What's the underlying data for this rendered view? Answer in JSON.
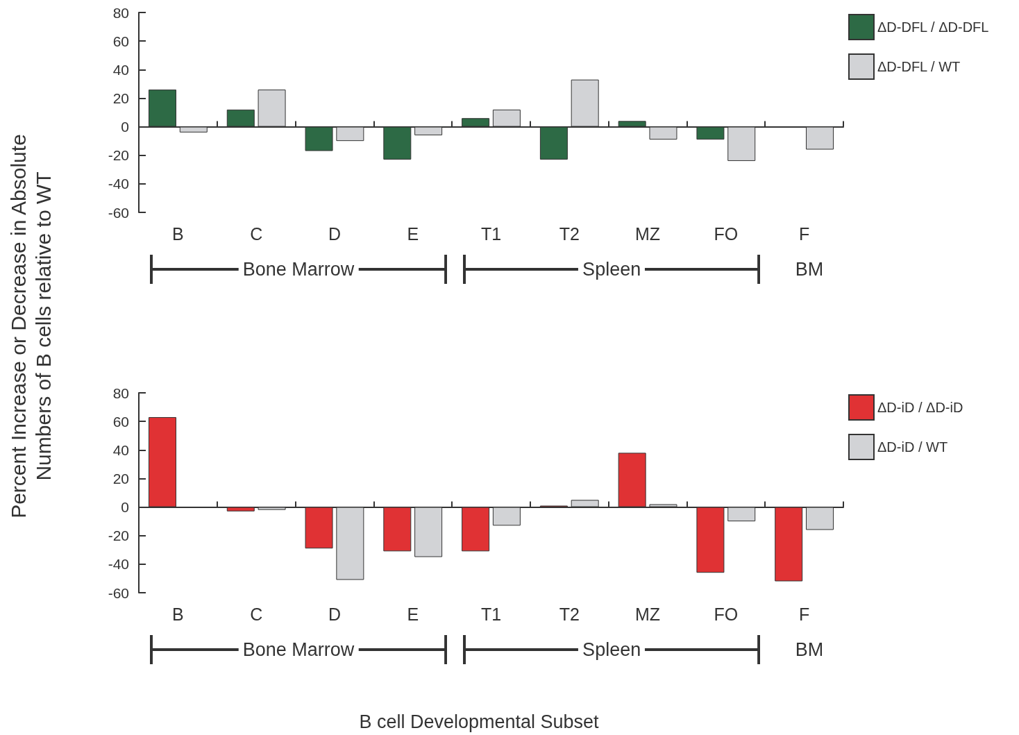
{
  "chart_data": [
    {
      "type": "bar",
      "ylabel": "Percent Increase or Decrease in Absolute\nNumbers of B cells relative to WT",
      "categories": [
        "B",
        "C",
        "D",
        "E",
        "T1",
        "T2",
        "MZ",
        "FO",
        "F"
      ],
      "series": [
        {
          "name": "ΔD-DFL / ΔD-DFL",
          "color": "#2d6a45",
          "values": [
            26,
            12,
            -17,
            -23,
            6,
            -23,
            4,
            -9,
            null
          ]
        },
        {
          "name": "ΔD-DFL / WT",
          "color": "#d2d3d6",
          "values": [
            -4,
            26,
            -10,
            -6,
            12,
            33,
            -9,
            -24,
            -16
          ]
        }
      ],
      "ylim": [
        -60,
        80
      ],
      "yticks": [
        -60,
        -40,
        -20,
        0,
        20,
        40,
        60,
        80
      ],
      "legend": "top right",
      "annotations": [
        "Bone Marrow",
        "Spleen",
        "BM"
      ]
    },
    {
      "type": "bar",
      "xlabel": "B cell Developmental Subset",
      "categories": [
        "B",
        "C",
        "D",
        "E",
        "T1",
        "T2",
        "MZ",
        "FO",
        "F"
      ],
      "series": [
        {
          "name": "ΔD-iD / ΔD-iD",
          "color": "#e03234",
          "values": [
            63,
            -3,
            -29,
            -31,
            -31,
            1,
            38,
            -46,
            -52
          ]
        },
        {
          "name": "ΔD-iD / WT",
          "color": "#d2d3d6",
          "values": [
            null,
            -2,
            -51,
            -35,
            -13,
            5,
            2,
            -10,
            -16
          ]
        }
      ],
      "ylim": [
        -60,
        80
      ],
      "yticks": [
        -60,
        -40,
        -20,
        0,
        20,
        40,
        60,
        80
      ],
      "legend": "top right",
      "annotations": [
        "Bone Marrow",
        "Spleen",
        "BM"
      ]
    }
  ]
}
